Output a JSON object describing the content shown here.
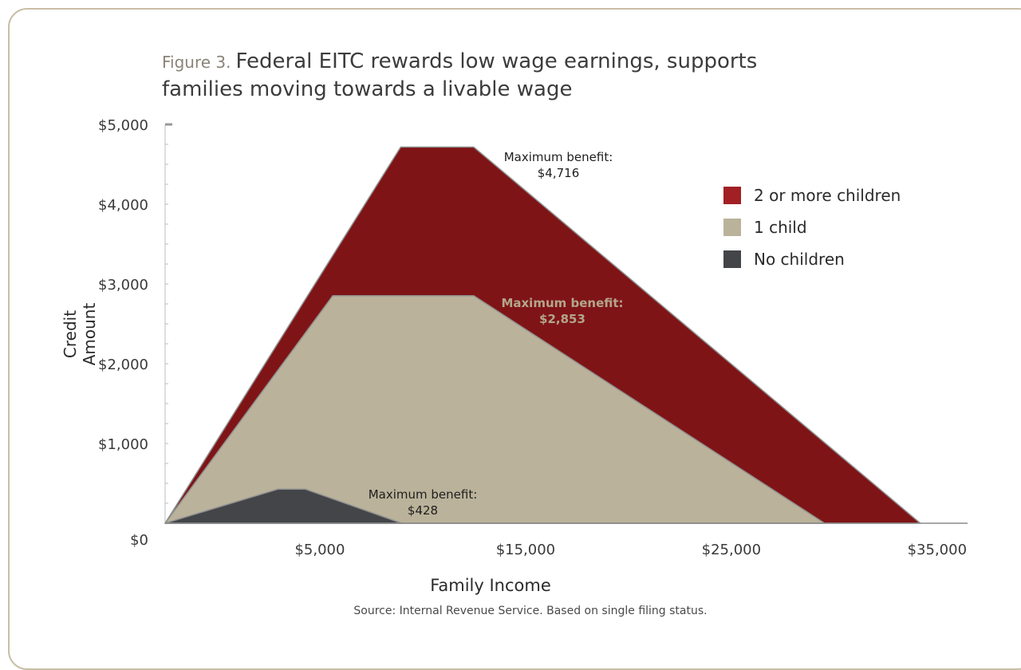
{
  "figure_label": "Figure 3.",
  "title_line1": "Federal EITC rewards low wage earnings, supports",
  "title_line2": "families moving towards a livable wage",
  "source": "Source: Internal Revenue Service.  Based on single filing status.",
  "annotations": {
    "two_plus": {
      "line1": "Maximum benefit:",
      "line2": "$4,716"
    },
    "one_child": {
      "line1": "Maximum benefit:",
      "line2": "$2,853"
    },
    "no_children": {
      "line1": "Maximum benefit:",
      "line2": "$428"
    }
  },
  "colors": {
    "two_plus": "#7f1416",
    "one_child": "#bab29a",
    "no_children": "#434548",
    "legend_two_plus": "#a21f23",
    "axis": "#bdbdbd",
    "one_child_annotation": "#b2a68b"
  },
  "chart_data": {
    "type": "area",
    "xlabel": "Family Income",
    "ylabel": "Credit Amount",
    "xlim": [
      0,
      39000
    ],
    "ylim": [
      0,
      5000
    ],
    "x_ticks": [
      {
        "value": 5000,
        "label": "$5,000"
      },
      {
        "value": 15000,
        "label": "$15,000"
      },
      {
        "value": 25000,
        "label": "$25,000"
      },
      {
        "value": 35000,
        "label": "$35,000"
      }
    ],
    "y_ticks": [
      {
        "value": 0,
        "label": "$0"
      },
      {
        "value": 1000,
        "label": "$1,000"
      },
      {
        "value": 2000,
        "label": "$2,000"
      },
      {
        "value": 3000,
        "label": "$3,000"
      },
      {
        "value": 4000,
        "label": "$4,000"
      },
      {
        "value": 5000,
        "label": "$5,000"
      }
    ],
    "series": [
      {
        "name": "2 or more children",
        "key": "two_plus",
        "points": [
          [
            0,
            0
          ],
          [
            11450,
            4716
          ],
          [
            15000,
            4716
          ],
          [
            36700,
            0
          ]
        ]
      },
      {
        "name": "1 child",
        "key": "one_child",
        "points": [
          [
            0,
            0
          ],
          [
            8150,
            2853
          ],
          [
            15000,
            2853
          ],
          [
            32050,
            0
          ]
        ]
      },
      {
        "name": "No children",
        "key": "no_children",
        "points": [
          [
            0,
            0
          ],
          [
            5500,
            428
          ],
          [
            6800,
            428
          ],
          [
            11500,
            0
          ]
        ]
      }
    ],
    "legend_position": "right"
  }
}
